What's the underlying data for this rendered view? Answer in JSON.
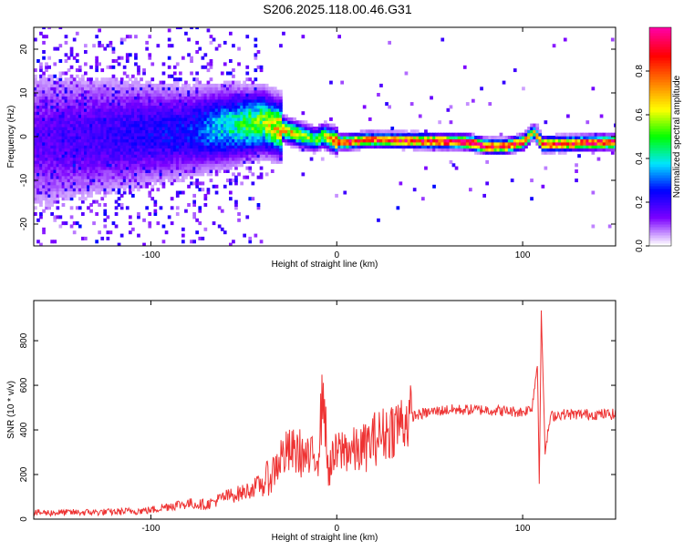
{
  "title": "S206.2025.118.00.46.G31",
  "chart_data": [
    {
      "type": "heatmap",
      "xlabel": "Height of straight line (km)",
      "ylabel": "Frequency (Hz)",
      "xlim": [
        -163,
        150
      ],
      "ylim": [
        -25,
        25
      ],
      "xticks": [
        -100,
        0,
        100
      ],
      "yticks": [
        -20,
        -10,
        0,
        10,
        20
      ],
      "colorbar": {
        "label": "Normalized spectral amplitude",
        "range": [
          0,
          1
        ],
        "ticks": [
          0.0,
          0.2,
          0.4,
          0.6,
          0.8
        ],
        "colors": [
          "#ffffff",
          "#7b00ff",
          "#0000ff",
          "#00e5ff",
          "#00ff00",
          "#ffff00",
          "#ff7f00",
          "#ff0000",
          "#ff00a0"
        ]
      },
      "ridge": {
        "description_points_x": [
          -163,
          -120,
          -80,
          -60,
          -40,
          -30,
          -20,
          -12,
          -8,
          0,
          5,
          15,
          40,
          70,
          80,
          90,
          100,
          105,
          110,
          150
        ],
        "frequency_y": [
          -1.2,
          0,
          1,
          2,
          3,
          1.5,
          0,
          -1,
          0,
          -1.5,
          -1.5,
          -1,
          -1.2,
          -1.5,
          -2.5,
          -2.5,
          -1.5,
          1,
          -2,
          -1.5
        ],
        "amplitude": [
          0.15,
          0.2,
          0.25,
          0.4,
          0.55,
          0.7,
          0.6,
          0.5,
          0.55,
          0.85,
          0.9,
          0.85,
          0.9,
          0.95,
          0.95,
          0.9,
          0.85,
          0.6,
          0.9,
          0.95
        ]
      }
    },
    {
      "type": "line",
      "xlabel": "Height of straight line (km)",
      "ylabel": "SNR (10 * v/v)",
      "xlim": [
        -163,
        150
      ],
      "ylim": [
        0,
        980
      ],
      "xticks": [
        -100,
        0,
        100
      ],
      "yticks": [
        0,
        200,
        400,
        600,
        800
      ],
      "color": "#ee3333",
      "series": [
        {
          "x": [
            -163,
            -140,
            -120,
            -100,
            -90,
            -80,
            -70,
            -60,
            -50,
            -40,
            -35,
            -30,
            -25,
            -20,
            -15,
            -10,
            -7,
            -5,
            0,
            5,
            10,
            15,
            20,
            25,
            30,
            40,
            50,
            60,
            70,
            80,
            90,
            100,
            105,
            108,
            109,
            110,
            112,
            115,
            120,
            130,
            140,
            150
          ],
          "y": [
            28,
            30,
            32,
            40,
            60,
            70,
            65,
            100,
            120,
            160,
            200,
            280,
            300,
            300,
            260,
            300,
            600,
            220,
            290,
            320,
            300,
            320,
            360,
            380,
            410,
            460,
            480,
            490,
            490,
            490,
            485,
            480,
            500,
            700,
            130,
            960,
            300,
            460,
            470,
            470,
            470,
            470
          ]
        }
      ]
    }
  ]
}
